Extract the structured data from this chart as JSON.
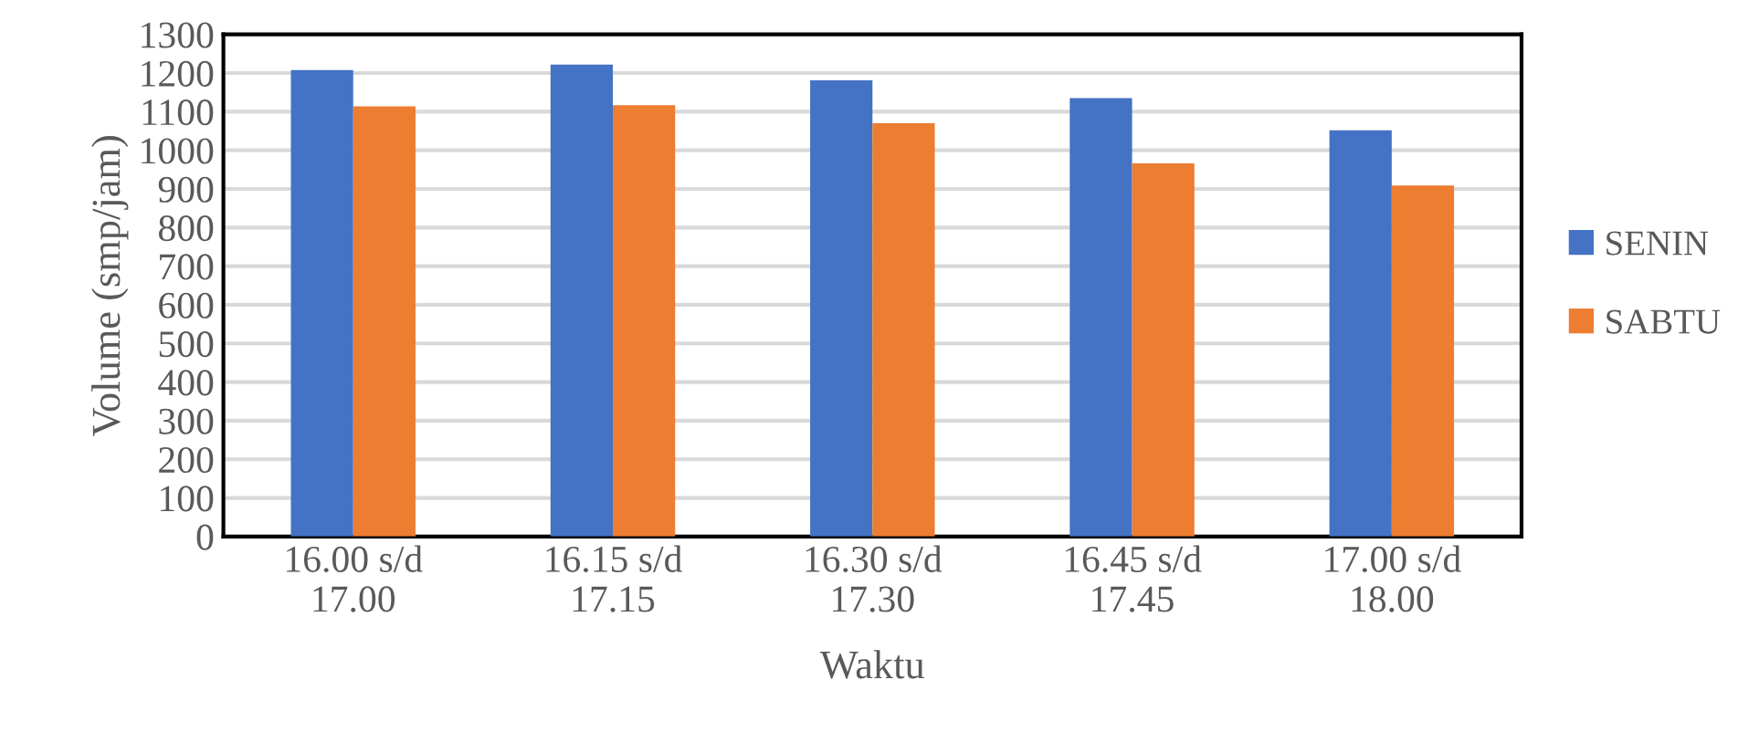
{
  "chart_data": {
    "type": "bar",
    "xlabel": "Waktu",
    "ylabel": "Volume (smp/jam)",
    "categories": [
      "16.00 s/d\n17.00",
      "16.15 s/d\n17.15",
      "16.30 s/d\n17.30",
      "16.45 s/d\n17.45",
      "17.00 s/d\n18.00"
    ],
    "series": [
      {
        "name": "SENIN",
        "color": "#4472c4",
        "values": [
          1208,
          1222,
          1181,
          1135,
          1052
        ]
      },
      {
        "name": "SABTU",
        "color": "#ed7d31",
        "values": [
          1114,
          1117,
          1070,
          966,
          909
        ]
      }
    ],
    "ylim": [
      0,
      1300
    ],
    "yticks": [
      0,
      100,
      200,
      300,
      400,
      500,
      600,
      700,
      800,
      900,
      1000,
      1100,
      1200,
      1300
    ],
    "grid": "y",
    "legend": "right"
  }
}
